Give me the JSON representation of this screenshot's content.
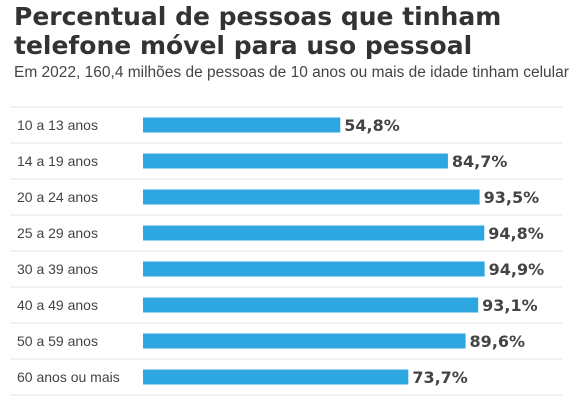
{
  "chart_data": {
    "type": "bar",
    "orientation": "horizontal",
    "title": "Percentual de pessoas que tinham telefone móvel para uso pessoal",
    "subtitle": "Em 2022, 160,4 milhões de pessoas de 10 anos ou mais de idade tinham celular",
    "categories": [
      "10 a 13 anos",
      "14 a 19 anos",
      "20 a 24 anos",
      "25 a 29 anos",
      "30 a 39 anos",
      "40 a 49 anos",
      "50 a 59 anos",
      "60 anos ou mais"
    ],
    "values": [
      54.8,
      84.7,
      93.5,
      94.8,
      94.9,
      93.1,
      89.6,
      73.7
    ],
    "value_labels": [
      "54,8%",
      "84,7%",
      "93,5%",
      "94,8%",
      "94,9%",
      "93,1%",
      "89,6%",
      "73,7%"
    ],
    "xlim": [
      0,
      100
    ],
    "bar_color": "#2ea7e0",
    "separator_color": "#e3e3e3",
    "grid": false,
    "legend": "none"
  }
}
